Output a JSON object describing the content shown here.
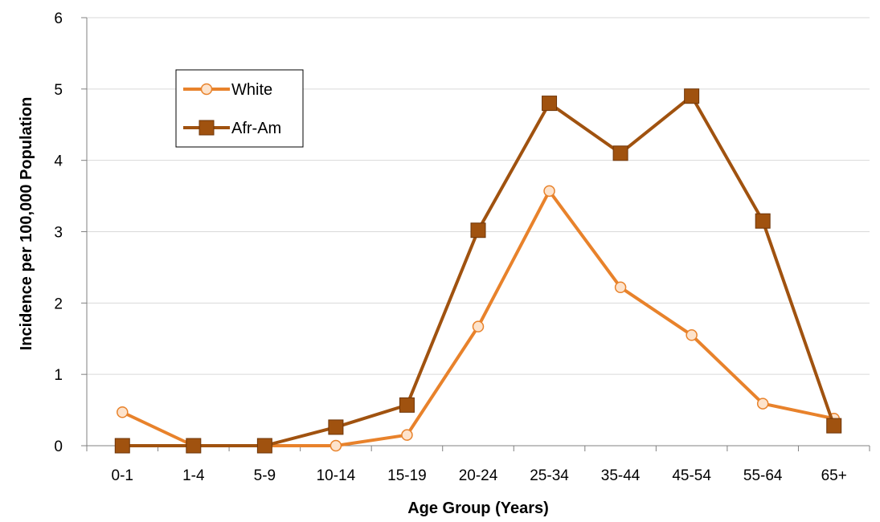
{
  "chart_data": {
    "type": "line",
    "categories": [
      "0-1",
      "1-4",
      "5-9",
      "10-14",
      "15-19",
      "20-24",
      "25-34",
      "35-44",
      "45-54",
      "55-64",
      "65+"
    ],
    "series": [
      {
        "name": "White",
        "values": [
          0.47,
          0.0,
          0.0,
          0.0,
          0.15,
          1.67,
          3.57,
          2.22,
          1.55,
          0.59,
          0.38
        ],
        "color": "#E8822B",
        "marker": "circle"
      },
      {
        "name": "Afr-Am",
        "values": [
          0.0,
          0.0,
          0.0,
          0.26,
          0.57,
          3.02,
          4.8,
          4.1,
          4.9,
          3.15,
          0.28
        ],
        "color": "#A0520F",
        "marker": "square"
      }
    ],
    "xlabel": "Age Group (Years)",
    "ylabel": "Incidence  per 100,000 Population",
    "ylim": [
      0,
      6
    ],
    "yticks": [
      "0",
      "1",
      "2",
      "3",
      "4",
      "5",
      "6"
    ],
    "grid": true,
    "legend": "top-left"
  }
}
